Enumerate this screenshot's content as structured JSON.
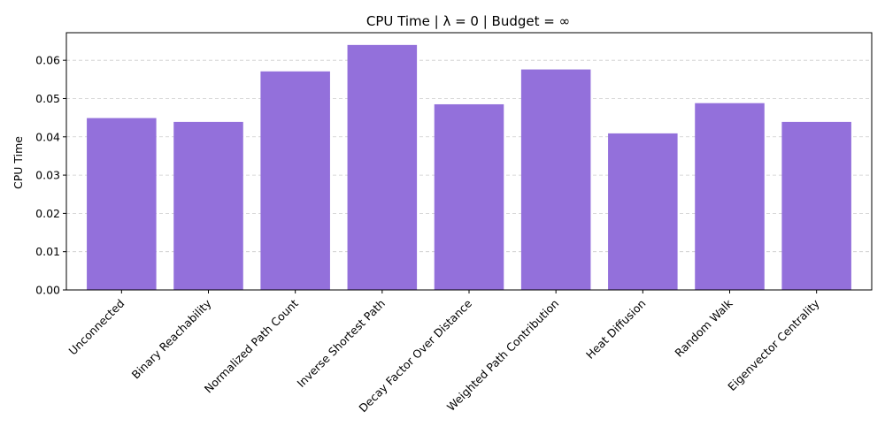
{
  "chart_data": {
    "type": "bar",
    "title": "CPU Time | λ = 0 | Budget = ∞",
    "xlabel": "",
    "ylabel": "CPU Time",
    "categories": [
      "Unconnected",
      "Binary Reachability",
      "Normalized Path Count",
      "Inverse Shortest Path",
      "Decay Factor Over Distance",
      "Weighted Path Contribution",
      "Heat Diffusion",
      "Random Walk",
      "Eigenvector Centrality"
    ],
    "values": [
      0.0449,
      0.0439,
      0.0571,
      0.064,
      0.0485,
      0.0576,
      0.0409,
      0.0488,
      0.0439
    ],
    "ylim": [
      0,
      0.0672
    ],
    "yticks": [
      "0.00",
      "0.01",
      "0.02",
      "0.03",
      "0.04",
      "0.05",
      "0.06"
    ],
    "ytick_values": [
      0,
      0.01,
      0.02,
      0.03,
      0.04,
      0.05,
      0.06
    ],
    "bar_color": "#9370DB",
    "grid": "y-dashed"
  }
}
